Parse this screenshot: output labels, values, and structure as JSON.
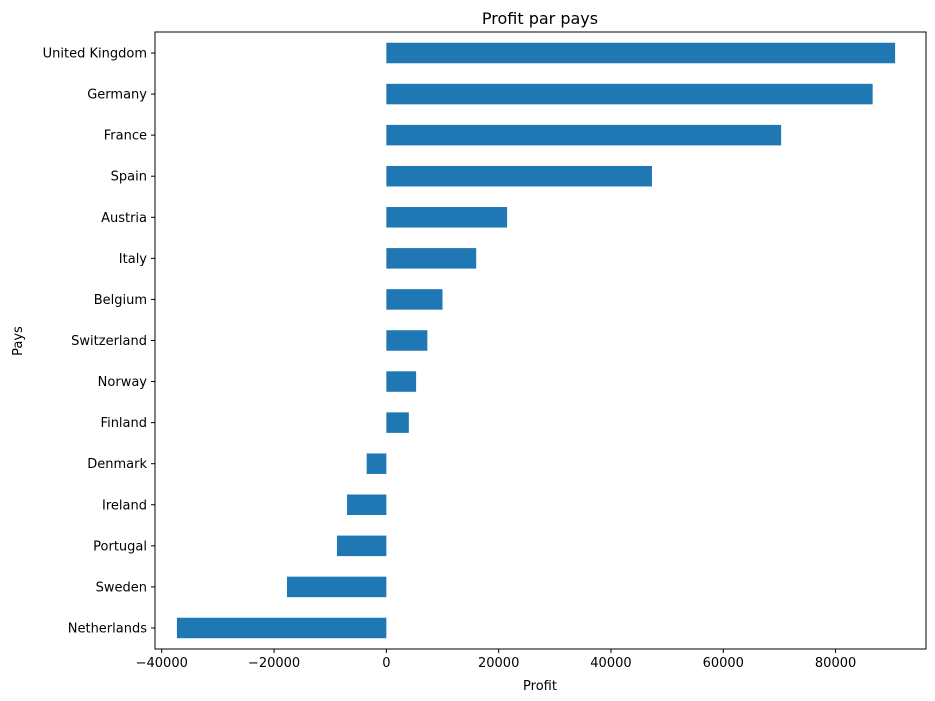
{
  "chart_data": {
    "type": "bar",
    "orientation": "horizontal",
    "title": "Profit par pays",
    "xlabel": "Profit",
    "ylabel": "Pays",
    "xlim": [
      -40000,
      100000
    ],
    "xticks": [
      -40000,
      -20000,
      0,
      20000,
      40000,
      60000,
      80000
    ],
    "xtick_labels": [
      "−40000",
      "−20000",
      "0",
      "20000",
      "40000",
      "60000",
      "80000"
    ],
    "grid": false,
    "categories": [
      "United Kingdom",
      "Germany",
      "France",
      "Spain",
      "Austria",
      "Italy",
      "Belgium",
      "Switzerland",
      "Norway",
      "Finland",
      "Denmark",
      "Ireland",
      "Portugal",
      "Sweden",
      "Netherlands"
    ],
    "values": [
      90600,
      86600,
      70300,
      47300,
      21500,
      16000,
      10000,
      7300,
      5300,
      4000,
      -3500,
      -7000,
      -8800,
      -17700,
      -37300
    ],
    "bar_color": "#1f77b4"
  }
}
